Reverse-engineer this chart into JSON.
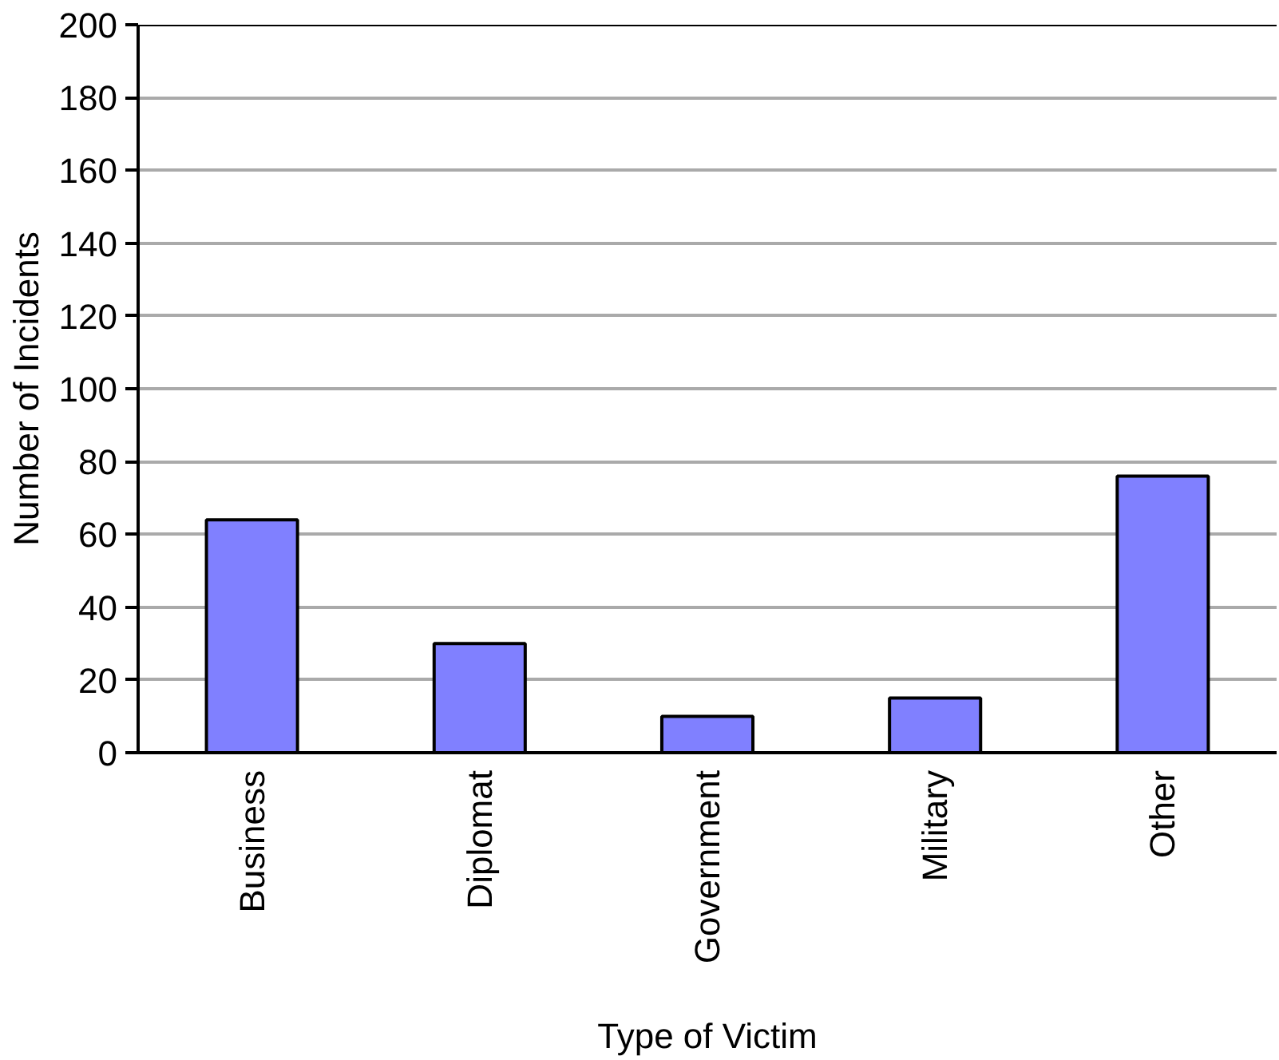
{
  "chart_data": {
    "type": "bar",
    "xlabel": "Type of Victim",
    "ylabel": "Number of Incidents",
    "categories": [
      "Business",
      "Diplomat",
      "Government",
      "Military",
      "Other"
    ],
    "values": [
      64,
      30,
      10,
      15,
      76
    ],
    "color": "#8080ff",
    "ylim": [
      0,
      200
    ],
    "yticks": [
      0,
      20,
      40,
      60,
      80,
      100,
      120,
      140,
      160,
      180,
      200
    ],
    "grid": "y"
  }
}
